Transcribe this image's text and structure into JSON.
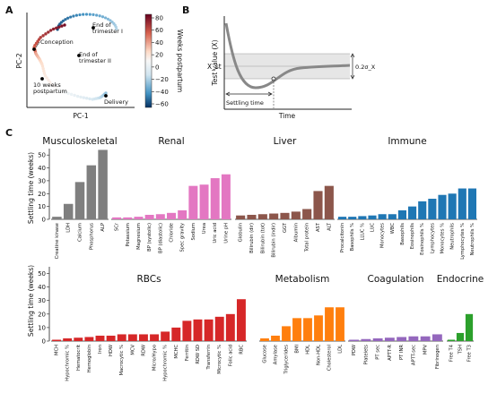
{
  "panels": {
    "a": "A",
    "b": "B",
    "c": "C"
  },
  "panel_a": {
    "xlabel": "PC-1",
    "ylabel": "PC-2",
    "colorbar": {
      "label": "Weeks postpartum",
      "ticks": [
        "80",
        "60",
        "40",
        "20",
        "0",
        "−20",
        "−40",
        "−60"
      ],
      "range": [
        -60,
        80
      ]
    },
    "annotations": [
      "Conception",
      "End of trimester I",
      "End of trimester II",
      "10 weeks postpartum",
      "Delivery"
    ],
    "annotation_lines": {
      "trim1": [
        "End of",
        "trimester I"
      ],
      "trim2": [
        "End of",
        "trimester II"
      ],
      "tenweeks": [
        "10 weeks",
        "postpartum"
      ],
      "conception": "Conception",
      "delivery": "Delivery"
    }
  },
  "panel_b": {
    "ylabel": "Test value (X)",
    "xlabel": "Time",
    "x_st": "X_st",
    "band": "0.2σ_X",
    "settling": "Settling time"
  },
  "chart_data": {
    "type": "bar",
    "ylabel": "Settling time (weeks)",
    "ylim": [
      0,
      55
    ],
    "yticks": [
      0,
      10,
      20,
      30,
      40,
      50
    ],
    "groups": [
      {
        "name": "Musculoskeletal",
        "color": "#7f7f7f",
        "categories": [
          "Creatine kinase",
          "LDH",
          "Calcium",
          "Phosphorus",
          "ALP"
        ],
        "values": [
          2,
          12,
          29,
          42,
          54
        ]
      },
      {
        "name": "Renal",
        "color": "#e377c2",
        "categories": [
          "SCr",
          "Potassium",
          "Magnesium",
          "BP (systolic)",
          "BP (diastolic)",
          "Chloride",
          "Spec gravity",
          "Sodium",
          "Urea",
          "Uric acid",
          "Urine pH"
        ],
        "values": [
          1.5,
          1.5,
          2,
          3.5,
          4,
          5,
          7,
          26,
          27,
          32,
          35
        ]
      },
      {
        "name": "Liver",
        "color": "#8c564b",
        "categories": [
          "Globulin",
          "Bilirubin (dir)",
          "Bilirubin (tot)",
          "Bilirubin (indir)",
          "GGT",
          "Albumin",
          "Total protein",
          "AST",
          "ALT"
        ],
        "values": [
          3,
          3.5,
          4,
          4.5,
          5,
          6,
          8,
          22,
          26
        ]
      },
      {
        "name": "Immune",
        "color": "#1f77b4",
        "categories": [
          "Procalcitonin",
          "Basophils %",
          "LLUC %",
          "LUC",
          "Monocytes",
          "WBC",
          "Basophils",
          "Eosinophils",
          "Eosinophils %",
          "Lymphocytes",
          "Monocytes %",
          "Neutrophils",
          "Lymphocytes %",
          "Neutrophils %"
        ],
        "values": [
          2,
          2,
          2.5,
          3,
          4,
          4,
          7,
          10,
          14,
          16,
          19,
          20,
          24,
          24
        ]
      },
      {
        "name": "RBCs",
        "color": "#d62728",
        "categories": [
          "MCH",
          "Hypochromic %",
          "Hematocrit",
          "Hemoglobin",
          "Iron",
          "HDW",
          "Macrocytic %",
          "MCV",
          "RDW",
          "Micro/Hypo",
          "Hypochromic %",
          "MCHC",
          "Ferritin",
          "RDW SD",
          "Transferrin",
          "Microcytic %",
          "Folic acid",
          "RBC"
        ],
        "values": [
          1,
          2,
          2.5,
          3,
          4,
          4,
          5,
          5,
          5,
          5,
          7,
          10,
          15,
          16,
          16,
          18,
          20,
          31
        ]
      },
      {
        "name": "Metabolism",
        "color": "#ff7f0e",
        "categories": [
          "Glucose",
          "Amylase",
          "Triglycerides",
          "BMI",
          "HDL",
          "Non-HDL",
          "Cholesterol",
          "LDL"
        ],
        "values": [
          2,
          4,
          11,
          17,
          17,
          19,
          25,
          25
        ]
      },
      {
        "name": "Coagulation",
        "color": "#9467bd",
        "categories": [
          "PDW",
          "Platelets",
          "PT sec",
          "APTT-R",
          "PT INR",
          "APTT-sec",
          "MPV",
          "Fibrinogen"
        ],
        "values": [
          1,
          1.5,
          2,
          2.5,
          3,
          3.5,
          3.5,
          5
        ]
      },
      {
        "name": "Endocrine",
        "color": "#2ca02c",
        "categories": [
          "Free T4",
          "TSH",
          "Free T3"
        ],
        "values": [
          1,
          6,
          20
        ]
      }
    ]
  }
}
